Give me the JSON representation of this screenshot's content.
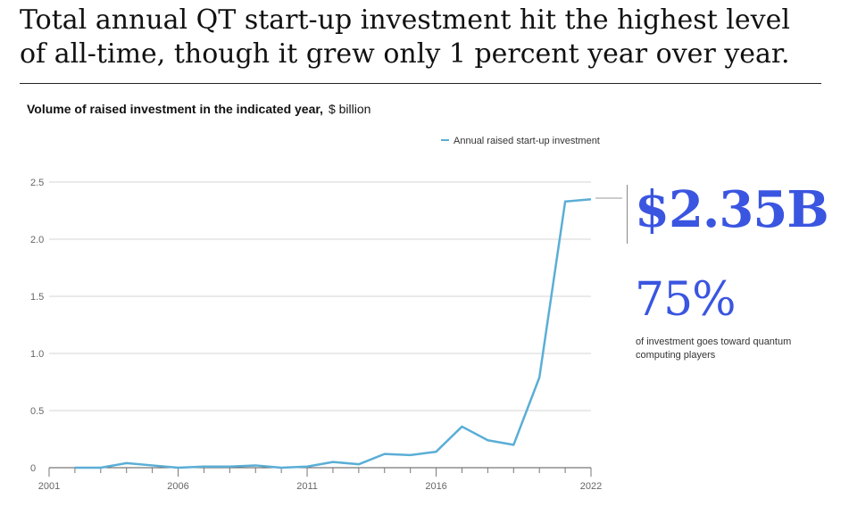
{
  "headline": "Total annual QT start-up investment hit the highest level of all-time, though it grew only 1 percent year over year.",
  "subtitle": {
    "bold": "Volume of raised investment in the indicated year,",
    "unit": "$ billion"
  },
  "callout": {
    "value": "$2.35B",
    "percent": "75%",
    "percent_note": "of investment goes toward quantum computing players"
  },
  "colors": {
    "line": "#5aaed6",
    "accent": "#3a55e0",
    "grid": "#d6d6d6"
  },
  "chart_data": {
    "type": "line",
    "title": "Volume of raised investment in the indicated year, $ billion",
    "xlabel": "",
    "ylabel": "",
    "x": [
      2002,
      2003,
      2004,
      2005,
      2006,
      2007,
      2008,
      2009,
      2010,
      2011,
      2012,
      2013,
      2014,
      2015,
      2016,
      2017,
      2018,
      2019,
      2020,
      2021,
      2022
    ],
    "series": [
      {
        "name": "Annual raised start-up investment",
        "values": [
          0.0,
          0.0,
          0.04,
          0.02,
          0.0,
          0.01,
          0.01,
          0.02,
          0.0,
          0.01,
          0.05,
          0.03,
          0.12,
          0.11,
          0.14,
          0.36,
          0.24,
          0.2,
          0.79,
          2.33,
          2.35
        ]
      }
    ],
    "xlim": [
      2001,
      2022
    ],
    "ylim": [
      0,
      2.5
    ],
    "x_tick_labels": [
      "2001",
      "2006",
      "2011",
      "2016",
      "2022"
    ],
    "y_tick_labels": [
      "0",
      "0.5",
      "1.0",
      "1.5",
      "2.0",
      "2.5"
    ],
    "y_ticks": [
      0,
      0.5,
      1.0,
      1.5,
      2.0,
      2.5
    ],
    "x_ticks": [
      2001,
      2006,
      2011,
      2016,
      2022
    ],
    "grid": "horizontal",
    "legend_position": "top-right"
  }
}
